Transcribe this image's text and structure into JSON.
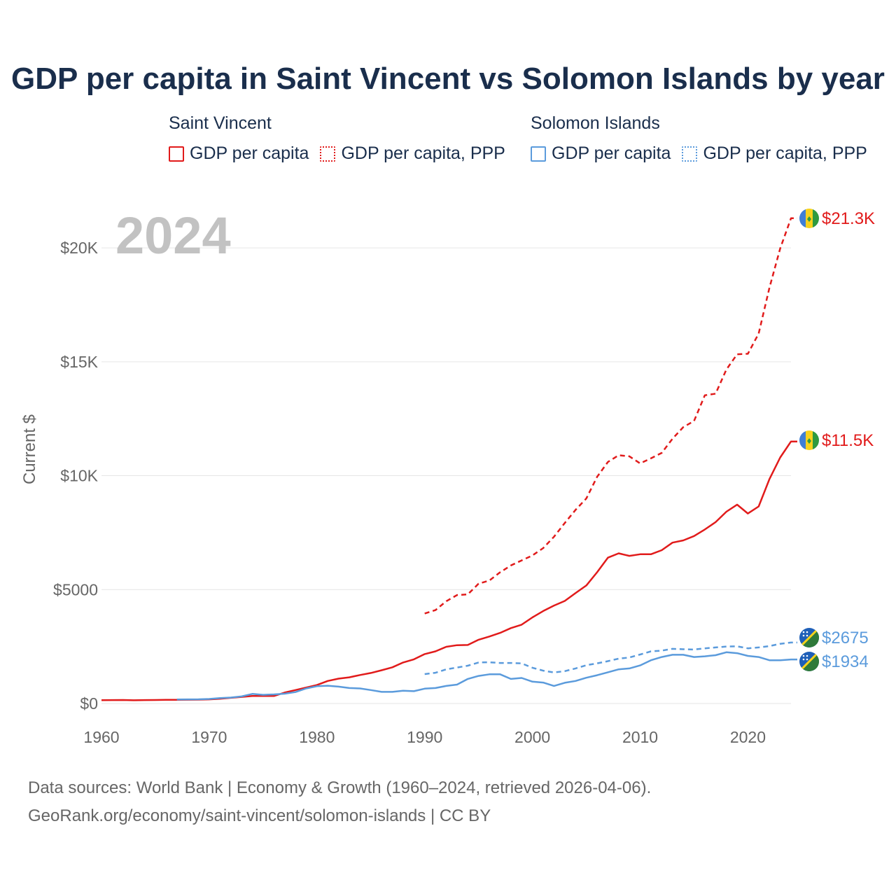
{
  "colors": {
    "saint_vincent": "#e11b1b",
    "solomon_islands": "#5b9bdc",
    "title": "#1a2e4c",
    "axis_text": "#666666",
    "grid": "#e6e6e6",
    "year_watermark": "#c2c2c2"
  },
  "title": "GDP per capita in Saint Vincent vs Solomon Islands by year",
  "legend": {
    "groups": [
      {
        "name": "Saint Vincent",
        "color_key": "saint_vincent",
        "items": [
          {
            "label": "GDP per capita",
            "style": "solid"
          },
          {
            "label": "GDP per capita, PPP",
            "style": "dotted"
          }
        ]
      },
      {
        "name": "Solomon Islands",
        "color_key": "solomon_islands",
        "items": [
          {
            "label": "GDP per capita",
            "style": "solid"
          },
          {
            "label": "GDP per capita, PPP",
            "style": "dotted"
          }
        ]
      }
    ]
  },
  "year_label": "2024",
  "footer": {
    "line1": "Data sources: World Bank | Economy & Growth (1960–2024, retrieved 2026-04-06).",
    "line2": "GeoRank.org/economy/saint-vincent/solomon-islands | CC BY"
  },
  "chart_data": {
    "type": "line",
    "title": "GDP per capita in Saint Vincent vs Solomon Islands by year",
    "xlabel": "",
    "ylabel": "Current $",
    "xlim": [
      1960,
      2024
    ],
    "ylim": [
      0,
      22000
    ],
    "x_ticks": [
      1960,
      1970,
      1980,
      1990,
      2000,
      2010,
      2020
    ],
    "y_ticks": [
      {
        "value": 0,
        "label": "$0"
      },
      {
        "value": 5000,
        "label": "$5000"
      },
      {
        "value": 10000,
        "label": "$10K"
      },
      {
        "value": 15000,
        "label": "$15K"
      },
      {
        "value": 20000,
        "label": "$20K"
      }
    ],
    "grid": true,
    "series": [
      {
        "name": "Saint Vincent – GDP per capita",
        "country": "Saint Vincent",
        "color_key": "saint_vincent",
        "dash": "solid",
        "x": [
          1960,
          1961,
          1962,
          1963,
          1964,
          1965,
          1966,
          1967,
          1968,
          1969,
          1970,
          1971,
          1972,
          1973,
          1974,
          1975,
          1976,
          1977,
          1978,
          1979,
          1980,
          1981,
          1982,
          1983,
          1984,
          1985,
          1986,
          1987,
          1988,
          1989,
          1990,
          1991,
          1992,
          1993,
          1994,
          1995,
          1996,
          1997,
          1998,
          1999,
          2000,
          2001,
          2002,
          2003,
          2004,
          2005,
          2006,
          2007,
          2008,
          2009,
          2010,
          2011,
          2012,
          2013,
          2014,
          2015,
          2016,
          2017,
          2018,
          2019,
          2020,
          2021,
          2022,
          2023,
          2024
        ],
        "values": [
          145,
          150,
          155,
          140,
          150,
          155,
          160,
          160,
          165,
          170,
          180,
          210,
          250,
          290,
          330,
          330,
          330,
          480,
          590,
          700,
          810,
          990,
          1090,
          1150,
          1250,
          1340,
          1460,
          1590,
          1800,
          1940,
          2170,
          2290,
          2490,
          2560,
          2570,
          2800,
          2940,
          3100,
          3310,
          3460,
          3780,
          4060,
          4300,
          4500,
          4850,
          5180,
          5760,
          6400,
          6590,
          6480,
          6550,
          6550,
          6730,
          7060,
          7160,
          7350,
          7640,
          7960,
          8420,
          8730,
          8340,
          8650,
          9850,
          10800,
          11500
        ],
        "end_label": "$11.5K"
      },
      {
        "name": "Saint Vincent – GDP per capita, PPP",
        "country": "Saint Vincent",
        "color_key": "saint_vincent",
        "dash": "dashed",
        "x": [
          1990,
          1991,
          1992,
          1993,
          1994,
          1995,
          1996,
          1997,
          1998,
          1999,
          2000,
          2001,
          2002,
          2003,
          2004,
          2005,
          2006,
          2007,
          2008,
          2009,
          2010,
          2011,
          2012,
          2013,
          2014,
          2015,
          2016,
          2017,
          2018,
          2019,
          2020,
          2021,
          2022,
          2023,
          2024
        ],
        "values": [
          3950,
          4100,
          4490,
          4760,
          4790,
          5260,
          5400,
          5760,
          6060,
          6280,
          6500,
          6820,
          7320,
          7920,
          8500,
          9000,
          9950,
          10600,
          10900,
          10850,
          10540,
          10760,
          11000,
          11620,
          12130,
          12400,
          13530,
          13600,
          14660,
          15330,
          15350,
          16240,
          18250,
          19980,
          21300
        ],
        "end_label": "$21.3K"
      },
      {
        "name": "Solomon Islands – GDP per capita",
        "country": "Solomon Islands",
        "color_key": "solomon_islands",
        "dash": "solid",
        "x": [
          1967,
          1968,
          1969,
          1970,
          1971,
          1972,
          1973,
          1974,
          1975,
          1976,
          1977,
          1978,
          1979,
          1980,
          1981,
          1982,
          1983,
          1984,
          1985,
          1986,
          1987,
          1988,
          1989,
          1990,
          1991,
          1992,
          1993,
          1994,
          1995,
          1996,
          1997,
          1998,
          1999,
          2000,
          2001,
          2002,
          2003,
          2004,
          2005,
          2006,
          2007,
          2008,
          2009,
          2010,
          2011,
          2012,
          2013,
          2014,
          2015,
          2016,
          2017,
          2018,
          2019,
          2020,
          2021,
          2022,
          2023,
          2024
        ],
        "values": [
          175,
          180,
          185,
          200,
          240,
          260,
          310,
          420,
          380,
          400,
          430,
          500,
          660,
          760,
          780,
          740,
          680,
          660,
          590,
          510,
          510,
          560,
          540,
          650,
          680,
          770,
          830,
          1080,
          1210,
          1280,
          1280,
          1080,
          1120,
          960,
          920,
          770,
          910,
          990,
          1130,
          1240,
          1370,
          1500,
          1540,
          1670,
          1900,
          2040,
          2140,
          2140,
          2040,
          2070,
          2120,
          2250,
          2210,
          2090,
          2040,
          1900,
          1900,
          1934
        ],
        "end_label": "$1934"
      },
      {
        "name": "Solomon Islands – GDP per capita, PPP",
        "country": "Solomon Islands",
        "color_key": "solomon_islands",
        "dash": "dashed",
        "x": [
          1990,
          1991,
          1992,
          1993,
          1994,
          1995,
          1996,
          1997,
          1998,
          1999,
          2000,
          2001,
          2002,
          2003,
          2004,
          2005,
          2006,
          2007,
          2008,
          2009,
          2010,
          2011,
          2012,
          2013,
          2014,
          2015,
          2016,
          2017,
          2018,
          2019,
          2020,
          2021,
          2022,
          2023,
          2024
        ],
        "values": [
          1290,
          1350,
          1500,
          1580,
          1660,
          1800,
          1810,
          1780,
          1780,
          1760,
          1570,
          1440,
          1360,
          1420,
          1540,
          1680,
          1760,
          1860,
          1970,
          2020,
          2150,
          2290,
          2320,
          2400,
          2380,
          2370,
          2420,
          2460,
          2500,
          2510,
          2420,
          2460,
          2520,
          2620,
          2675
        ],
        "end_label": "$2675"
      }
    ]
  }
}
